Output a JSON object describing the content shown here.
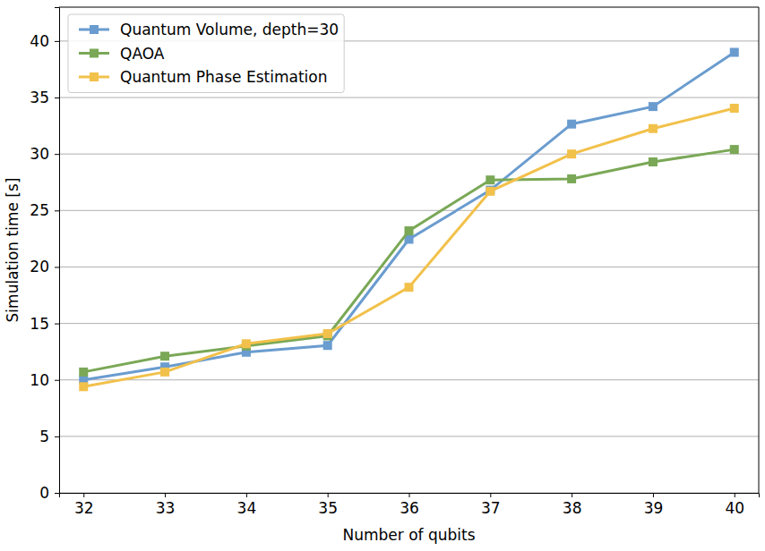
{
  "chart_data": {
    "type": "line",
    "x_label": "Number of qubits",
    "y_label": "Simulation time [s]",
    "x": [
      32,
      33,
      34,
      35,
      36,
      37,
      38,
      39,
      40
    ],
    "series": [
      {
        "name": "Quantum Volume, depth=30",
        "color": "#6a9ccf",
        "marker": "square",
        "values": [
          10.0,
          11.15,
          12.45,
          13.05,
          22.45,
          26.8,
          32.65,
          34.2,
          39.0
        ]
      },
      {
        "name": "QAOA",
        "color": "#7aa856",
        "marker": "square",
        "values": [
          10.7,
          12.1,
          13.0,
          13.9,
          23.2,
          27.7,
          27.8,
          29.3,
          30.4
        ]
      },
      {
        "name": "Quantum Phase Estimation",
        "color": "#f2c14b",
        "marker": "square",
        "values": [
          9.4,
          10.7,
          13.2,
          14.1,
          18.2,
          26.7,
          30.0,
          32.25,
          34.05
        ]
      }
    ],
    "xlim": [
      31.7,
      40.3
    ],
    "xticks": [
      32,
      33,
      34,
      35,
      36,
      37,
      38,
      39,
      40
    ],
    "ylim": [
      0,
      43
    ],
    "yticks": [
      0,
      5,
      10,
      15,
      20,
      25,
      30,
      35,
      40
    ],
    "grid": true,
    "legend": "upper-left"
  }
}
